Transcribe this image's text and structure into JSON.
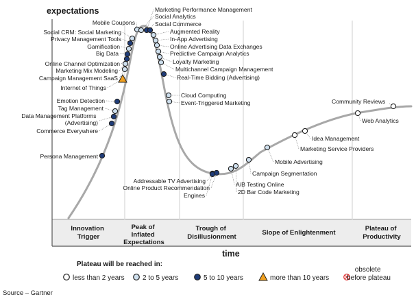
{
  "y_axis_label": "expectations",
  "x_axis_label": "time",
  "phases": [
    {
      "lines": [
        "Innovation",
        "Trigger"
      ]
    },
    {
      "lines": [
        "Peak of",
        "Inflated",
        "Expectations"
      ]
    },
    {
      "lines": [
        "Trough of",
        "Disillusionment"
      ]
    },
    {
      "lines": [
        "Slope of Enlightenment"
      ]
    },
    {
      "lines": [
        "Plateau of",
        "Productivity"
      ]
    }
  ],
  "legend": {
    "title": "Plateau will be reached in:",
    "items": [
      {
        "key": "lt2",
        "label": "less than 2 years",
        "color": "#ffffff"
      },
      {
        "key": "2to5",
        "label": "2 to 5 years",
        "color": "#cfe0ee"
      },
      {
        "key": "5to10",
        "label": "5 to 10 years",
        "color": "#1f3c78"
      },
      {
        "key": "gt10",
        "label": "more than 10 years",
        "color": "#f0a020"
      },
      {
        "key": "obsolete",
        "label_lines": [
          "obsolete",
          "before plateau"
        ],
        "color": "#e03030"
      }
    ]
  },
  "source": "Source – Gartner",
  "curve_color": "#a8a8a8",
  "technologies": [
    {
      "name": "Persona Management",
      "category": "5to10"
    },
    {
      "name": "Commerce Everywhere",
      "category": "5to10"
    },
    {
      "name_lines": [
        "Data Management Platforms",
        "(Advertising)"
      ],
      "category": "5to10"
    },
    {
      "name": "Tag Management",
      "category": "2to5"
    },
    {
      "name": "Emotion Detection",
      "category": "5to10"
    },
    {
      "name": "Internet of Things",
      "category": "gt10"
    },
    {
      "name": "Campaign Management SaaS",
      "category": "2to5"
    },
    {
      "name": "Marketing Mix Modeling",
      "category": "2to5"
    },
    {
      "name": "Online Channel Optimization",
      "category": "5to10"
    },
    {
      "name": "Big Data",
      "category": "5to10"
    },
    {
      "name": "Gamification",
      "category": "2to5"
    },
    {
      "name": "Privacy Management Tools",
      "category": "5to10"
    },
    {
      "name": "Social CRM: Social Marketing",
      "category": "2to5"
    },
    {
      "name": "Mobile Coupons",
      "category": "2to5"
    },
    {
      "name": "Marketing Performance Management",
      "category": "5to10"
    },
    {
      "name": "Social Analytics",
      "category": "2to5"
    },
    {
      "name": "Social Commerce",
      "category": "5to10"
    },
    {
      "name": "Augmented Reality",
      "category": "2to5"
    },
    {
      "name": "In-App Advertising",
      "category": "2to5"
    },
    {
      "name": "Online Advertising Data Exchanges",
      "category": "2to5"
    },
    {
      "name": "Predictive Campaign Analytics",
      "category": "2to5"
    },
    {
      "name": "Loyalty Marketing",
      "category": "2to5"
    },
    {
      "name": "Multichannel Campaign Management",
      "category": "2to5"
    },
    {
      "name": "Real-Time Bidding (Advertising)",
      "category": "5to10"
    },
    {
      "name": "Cloud Computing",
      "category": "2to5"
    },
    {
      "name": "Event-Triggered Marketing",
      "category": "2to5"
    },
    {
      "name": "Addressable TV Advertising",
      "category": "5to10"
    },
    {
      "name": "Online Product Recommendation",
      "category": "5to10"
    },
    {
      "name": "Engines",
      "category": "5to10"
    },
    {
      "name": "A/B Testing Online",
      "category": "2to5"
    },
    {
      "name": "2D Bar Code Marketing",
      "category": "2to5"
    },
    {
      "name": "Campaign Segmentation",
      "category": "2to5"
    },
    {
      "name": "Mobile Advertising",
      "category": "2to5"
    },
    {
      "name": "Marketing Service Providers",
      "category": "lt2"
    },
    {
      "name": "Idea Management",
      "category": "lt2"
    },
    {
      "name": "Web Analytics",
      "category": "lt2"
    },
    {
      "name": "Community Reviews",
      "category": "lt2"
    }
  ]
}
